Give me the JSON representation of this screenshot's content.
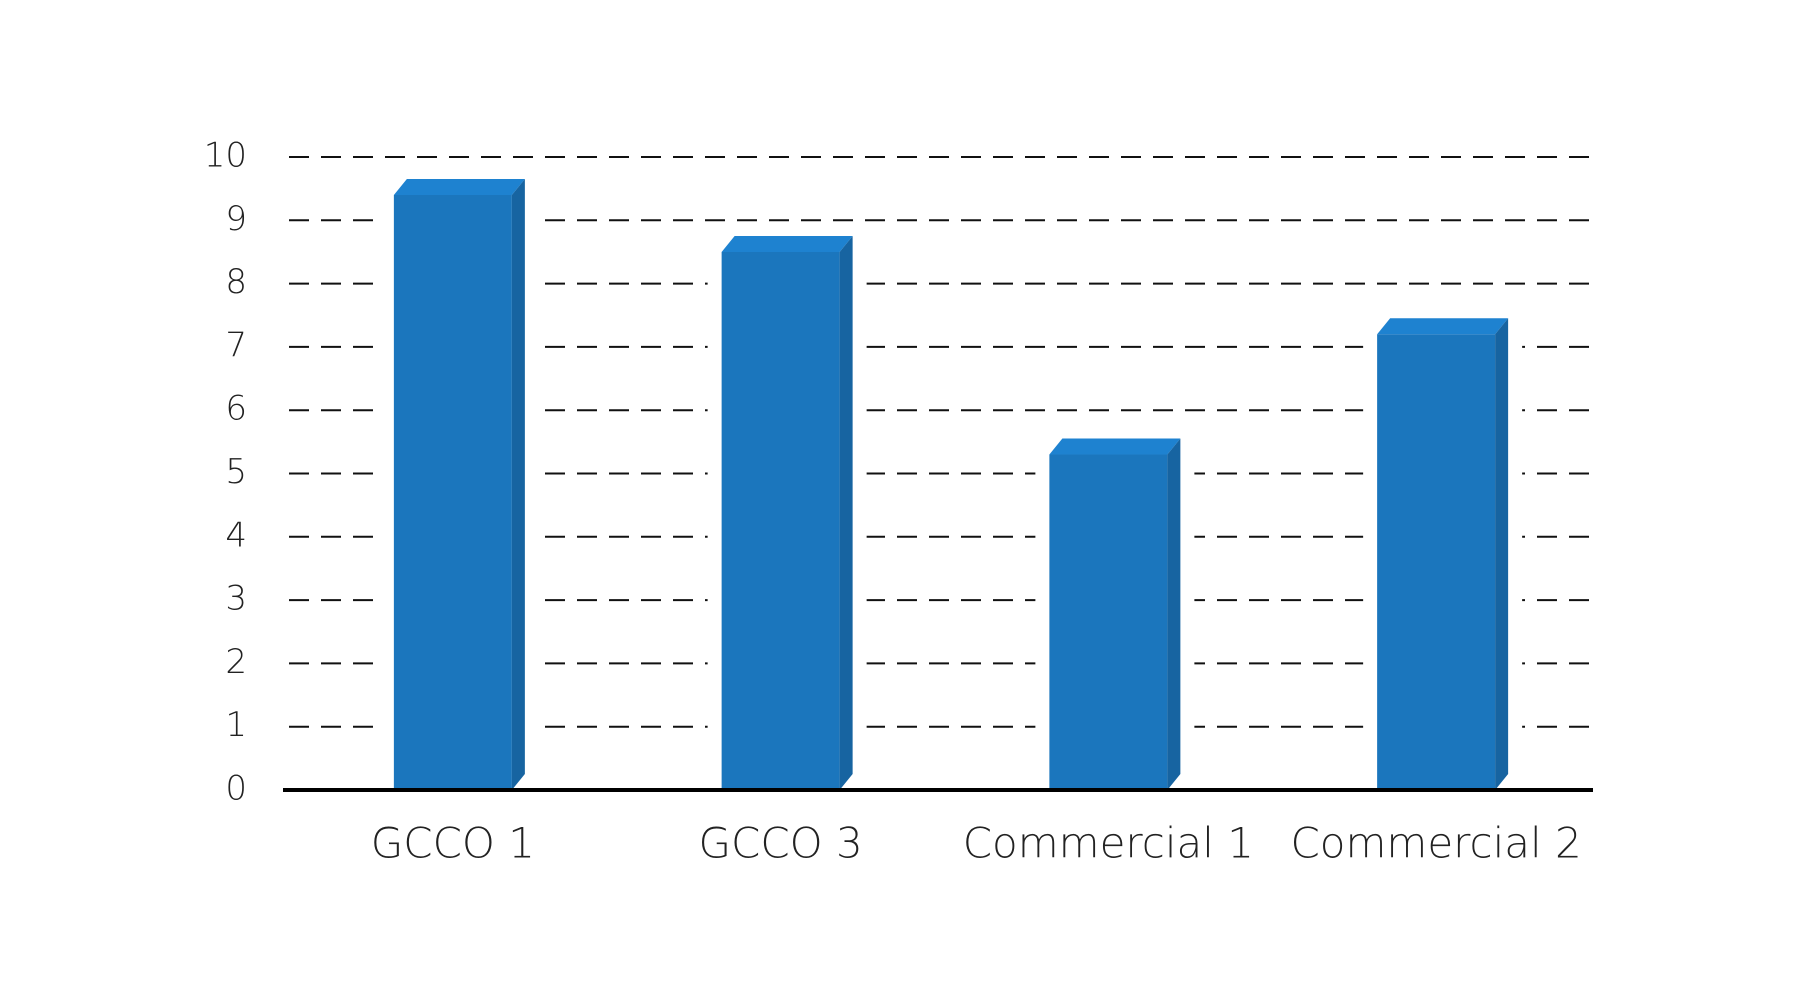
{
  "chart_data": {
    "type": "bar3d",
    "categories": [
      "GCCO 1",
      "GCCO 3",
      "Commercial 1",
      "Commercial 2"
    ],
    "values": [
      9.4,
      8.5,
      5.3,
      7.2
    ],
    "color": "#1b76bd",
    "ylim": [
      0,
      10
    ],
    "yticks": [
      0,
      1,
      2,
      3,
      4,
      5,
      6,
      7,
      8,
      9,
      10
    ],
    "grid": true
  }
}
